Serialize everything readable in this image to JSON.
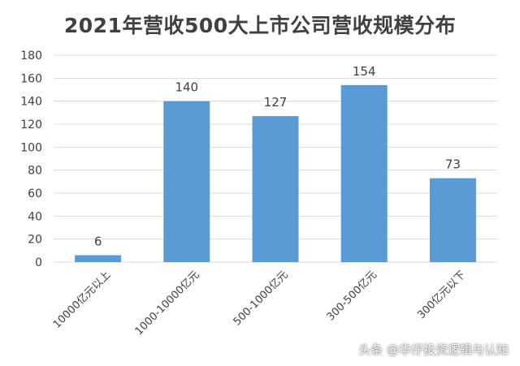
{
  "chart_data": {
    "type": "bar",
    "title": "2021年营收500大上市公司营收规模分布",
    "categories": [
      "10000亿元以上",
      "1000-10000亿元",
      "500-1000亿元",
      "300-500亿元",
      "300亿元以下"
    ],
    "values": [
      6,
      140,
      127,
      154,
      73
    ],
    "ylim": [
      0,
      180
    ],
    "yticks": [
      0,
      20,
      40,
      60,
      80,
      100,
      120,
      140,
      160,
      180
    ],
    "grid": true,
    "legend": "none",
    "bar_color": "#5b9bd5"
  },
  "watermark": "头条 @华仔投资逻辑与认知"
}
